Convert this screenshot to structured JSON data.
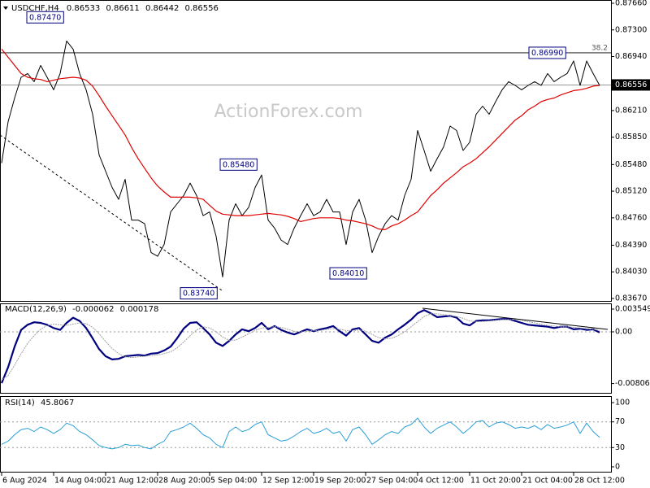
{
  "chart_data": {
    "type": "line",
    "symbol": "USDCHF,H4",
    "last_bar": [
      0.86533,
      0.86611,
      0.86442,
      0.86556
    ],
    "watermark": "ActionForex.com",
    "categories": [
      "6 Aug 2024",
      null,
      null,
      null,
      null,
      null,
      null,
      null,
      "14 Aug 04:00",
      null,
      null,
      null,
      null,
      null,
      null,
      null,
      "21 Aug 12:00",
      null,
      null,
      null,
      null,
      null,
      null,
      null,
      "28 Aug 20:00",
      null,
      null,
      null,
      null,
      null,
      null,
      null,
      "5 Sep 04:00",
      null,
      null,
      null,
      null,
      null,
      null,
      null,
      "12 Sep 12:00",
      null,
      null,
      null,
      null,
      null,
      null,
      null,
      "19 Sep 20:00",
      null,
      null,
      null,
      null,
      null,
      null,
      null,
      "27 Sep 04:00",
      null,
      null,
      null,
      null,
      null,
      null,
      null,
      "4 Oct 12:00",
      null,
      null,
      null,
      null,
      null,
      null,
      null,
      "11 Oct 20:00",
      null,
      null,
      null,
      null,
      null,
      null,
      null,
      "21 Oct 04:00",
      null,
      null,
      null,
      null,
      null,
      null,
      null,
      "28 Oct 12:00",
      null,
      null,
      null,
      null
    ],
    "ylim": [
      0.83626,
      0.87704
    ],
    "yticks": [
      {
        "value": 0.8766,
        "label": "0.87660"
      },
      {
        "value": 0.873,
        "label": "0.87300"
      },
      {
        "value": 0.8694,
        "label": "0.86940"
      },
      {
        "value": 0.8621,
        "label": "0.86210"
      },
      {
        "value": 0.8585,
        "label": "0.85850"
      },
      {
        "value": 0.8548,
        "label": "0.85480"
      },
      {
        "value": 0.8512,
        "label": "0.85120"
      },
      {
        "value": 0.8476,
        "label": "0.84760"
      },
      {
        "value": 0.8439,
        "label": "0.84390"
      },
      {
        "value": 0.8403,
        "label": "0.84030"
      },
      {
        "value": 0.8367,
        "label": "0.83670"
      }
    ],
    "level": {
      "value": 0.8699,
      "label": "38.2"
    },
    "annotations": [
      {
        "value": 0.8747,
        "label": "0.87470"
      },
      {
        "value": 0.8548,
        "label": "0.85480"
      },
      {
        "value": 0.8374,
        "label": "0.83740"
      },
      {
        "value": 0.8401,
        "label": "0.84010"
      },
      {
        "value": 0.8699,
        "label": "0.86990"
      }
    ],
    "series": [
      {
        "color": "#000000",
        "values": [
          0.855,
          0.8606,
          0.8638,
          0.8666,
          0.8671,
          0.866,
          0.8682,
          0.8666,
          0.8649,
          0.8671,
          0.8715,
          0.8704,
          0.8671,
          0.8649,
          0.8616,
          0.8561,
          0.8539,
          0.8517,
          0.8501,
          0.8528,
          0.8473,
          0.8473,
          0.8468,
          0.8429,
          0.8424,
          0.844,
          0.8484,
          0.8495,
          0.8506,
          0.8523,
          0.8506,
          0.8479,
          0.8484,
          0.8451,
          0.8396,
          0.8473,
          0.8495,
          0.8479,
          0.849,
          0.8517,
          0.8534,
          0.8473,
          0.8462,
          0.8446,
          0.844,
          0.8462,
          0.8479,
          0.8495,
          0.8479,
          0.8484,
          0.8501,
          0.8484,
          0.8484,
          0.844,
          0.8484,
          0.8501,
          0.8473,
          0.8429,
          0.8451,
          0.8468,
          0.8479,
          0.8473,
          0.8506,
          0.8528,
          0.8594,
          0.8567,
          0.8539,
          0.8556,
          0.8572,
          0.86,
          0.8594,
          0.8567,
          0.8578,
          0.8616,
          0.8627,
          0.8616,
          0.8633,
          0.8649,
          0.866,
          0.8655,
          0.8649,
          0.8655,
          0.866,
          0.8655,
          0.8671,
          0.866,
          0.8666,
          0.8671,
          0.8688,
          0.8655,
          0.8688,
          0.8671,
          0.8655
        ]
      },
      {
        "color": "#e00000",
        "values": [
          0.8704,
          0.8693,
          0.8682,
          0.8671,
          0.8666,
          0.8664,
          0.8663,
          0.866,
          0.8662,
          0.8664,
          0.8665,
          0.8666,
          0.8665,
          0.8662,
          0.8654,
          0.8641,
          0.8627,
          0.8614,
          0.8601,
          0.8588,
          0.8571,
          0.8556,
          0.8543,
          0.853,
          0.8519,
          0.8511,
          0.8504,
          0.8504,
          0.8504,
          0.8504,
          0.8503,
          0.8501,
          0.8493,
          0.8485,
          0.8481,
          0.848,
          0.8479,
          0.8479,
          0.8479,
          0.848,
          0.8481,
          0.8482,
          0.8481,
          0.848,
          0.8478,
          0.8475,
          0.8471,
          0.8473,
          0.8475,
          0.8476,
          0.8476,
          0.8476,
          0.8475,
          0.8473,
          0.8472,
          0.847,
          0.8468,
          0.8465,
          0.8461,
          0.846,
          0.8465,
          0.8468,
          0.8473,
          0.8479,
          0.8484,
          0.8495,
          0.8506,
          0.8514,
          0.8523,
          0.853,
          0.8537,
          0.8545,
          0.855,
          0.8556,
          0.8564,
          0.8572,
          0.8581,
          0.859,
          0.8599,
          0.8608,
          0.8614,
          0.8622,
          0.8627,
          0.8633,
          0.8636,
          0.8638,
          0.8642,
          0.8645,
          0.8648,
          0.8649,
          0.8651,
          0.8654,
          0.8655
        ]
      }
    ],
    "panels": [
      {
        "type": "line",
        "title": "MACD(12,26,9)",
        "last": [
          -6.2e-05,
          0.000178
        ],
        "ylim": [
          -0.00963,
          0.00431
        ],
        "yticks": [
          0.003549,
          {
            "value": 0,
            "label": "0.00"
          },
          -0.00806
        ],
        "series": [
          {
            "color": "#000080",
            "values": [
              -0.008,
              -0.0055,
              -0.0023,
              0.0003,
              0.0011,
              0.0015,
              0.0014,
              0.0011,
              0.0006,
              0.0003,
              0.0014,
              0.0022,
              0.0017,
              0.0006,
              -0.001,
              -0.0027,
              -0.0038,
              -0.0043,
              -0.0042,
              -0.0038,
              -0.0037,
              -0.0036,
              -0.0037,
              -0.0034,
              -0.0033,
              -0.0029,
              -0.0023,
              -0.001,
              0.0005,
              0.0014,
              0.0015,
              0.0006,
              -0.0004,
              -0.0017,
              -0.0022,
              -0.0014,
              -0.0004,
              0.0004,
              0.0001,
              0.0006,
              0.0014,
              0.0004,
              0.0009,
              0.0003,
              -0.0001,
              -0.0004,
              0.0,
              0.0004,
              0.0001,
              0.0004,
              0.0006,
              0.0009,
              0.0001,
              -0.0006,
              0.0004,
              0.0006,
              -0.0004,
              -0.0014,
              -0.0017,
              -0.0009,
              -0.0004,
              0.0004,
              0.0011,
              0.0019,
              0.0029,
              0.0034,
              0.0029,
              0.0023,
              0.0024,
              0.0025,
              0.0022,
              0.0013,
              0.001,
              0.0017,
              0.0018,
              0.0018,
              0.0019,
              0.002,
              0.002,
              0.0017,
              0.0014,
              0.0011,
              0.001,
              0.0009,
              0.0008,
              0.0006,
              0.0008,
              0.0008,
              0.0004,
              0.0005,
              0.0003,
              0.0004,
              -0.0001
            ]
          },
          {
            "color": "#a0a0a0",
            "values": [
              -0.0075,
              -0.0068,
              -0.0052,
              -0.0034,
              -0.0018,
              -0.0006,
              0.0004,
              0.001,
              0.0012,
              0.0011,
              0.001,
              0.0012,
              0.0014,
              0.0013,
              0.0007,
              -0.0003,
              -0.0015,
              -0.0026,
              -0.0034,
              -0.0039,
              -0.004,
              -0.0039,
              -0.0038,
              -0.0037,
              -0.0036,
              -0.0034,
              -0.0031,
              -0.0025,
              -0.0016,
              -0.0006,
              0.0003,
              0.0008,
              0.0006,
              0.0,
              -0.0008,
              -0.0013,
              -0.0013,
              -0.0008,
              -0.0003,
              0.0002,
              0.0006,
              0.0007,
              0.0008,
              0.0007,
              0.0004,
              0.0001,
              0.0,
              0.0001,
              0.0002,
              0.0002,
              0.0004,
              0.0005,
              0.0004,
              0.0002,
              0.0002,
              0.0003,
              0.0001,
              -0.0004,
              -0.0009,
              -0.0011,
              -0.001,
              -0.0006,
              0.0,
              0.0008,
              0.0016,
              0.0024,
              0.0028,
              0.0028,
              0.0027,
              0.0025,
              0.0024,
              0.0021,
              0.0017,
              0.0016,
              0.0016,
              0.0017,
              0.0018,
              0.0019,
              0.0019,
              0.0019,
              0.0018,
              0.0016,
              0.0014,
              0.0012,
              0.001,
              0.0009,
              0.0008,
              0.0008,
              0.0007,
              0.0006,
              0.0005,
              0.0004,
              0.0002
            ]
          }
        ]
      },
      {
        "type": "line",
        "title": "RSI(14)",
        "last": [
          45.8067
        ],
        "ylim": [
          -8.9,
          108.9
        ],
        "yticks": [
          100,
          70,
          30,
          0
        ],
        "levels": [
          70,
          30
        ],
        "series": [
          {
            "color": "#2a9fd6",
            "values": [
              35,
              40,
              50,
              58,
              60,
              55,
              62,
              58,
              52,
              58,
              68,
              64,
              55,
              50,
              42,
              33,
              30,
              28,
              30,
              35,
              33,
              34,
              30,
              28,
              35,
              40,
              55,
              58,
              62,
              68,
              60,
              50,
              45,
              35,
              30,
              55,
              62,
              55,
              58,
              66,
              70,
              50,
              45,
              40,
              42,
              48,
              55,
              60,
              52,
              55,
              60,
              52,
              55,
              40,
              58,
              62,
              50,
              35,
              42,
              50,
              55,
              52,
              62,
              66,
              76,
              62,
              52,
              60,
              65,
              70,
              62,
              52,
              60,
              70,
              72,
              62,
              68,
              70,
              66,
              60,
              62,
              60,
              64,
              58,
              66,
              60,
              62,
              65,
              70,
              52,
              68,
              55,
              46
            ]
          }
        ]
      }
    ]
  }
}
